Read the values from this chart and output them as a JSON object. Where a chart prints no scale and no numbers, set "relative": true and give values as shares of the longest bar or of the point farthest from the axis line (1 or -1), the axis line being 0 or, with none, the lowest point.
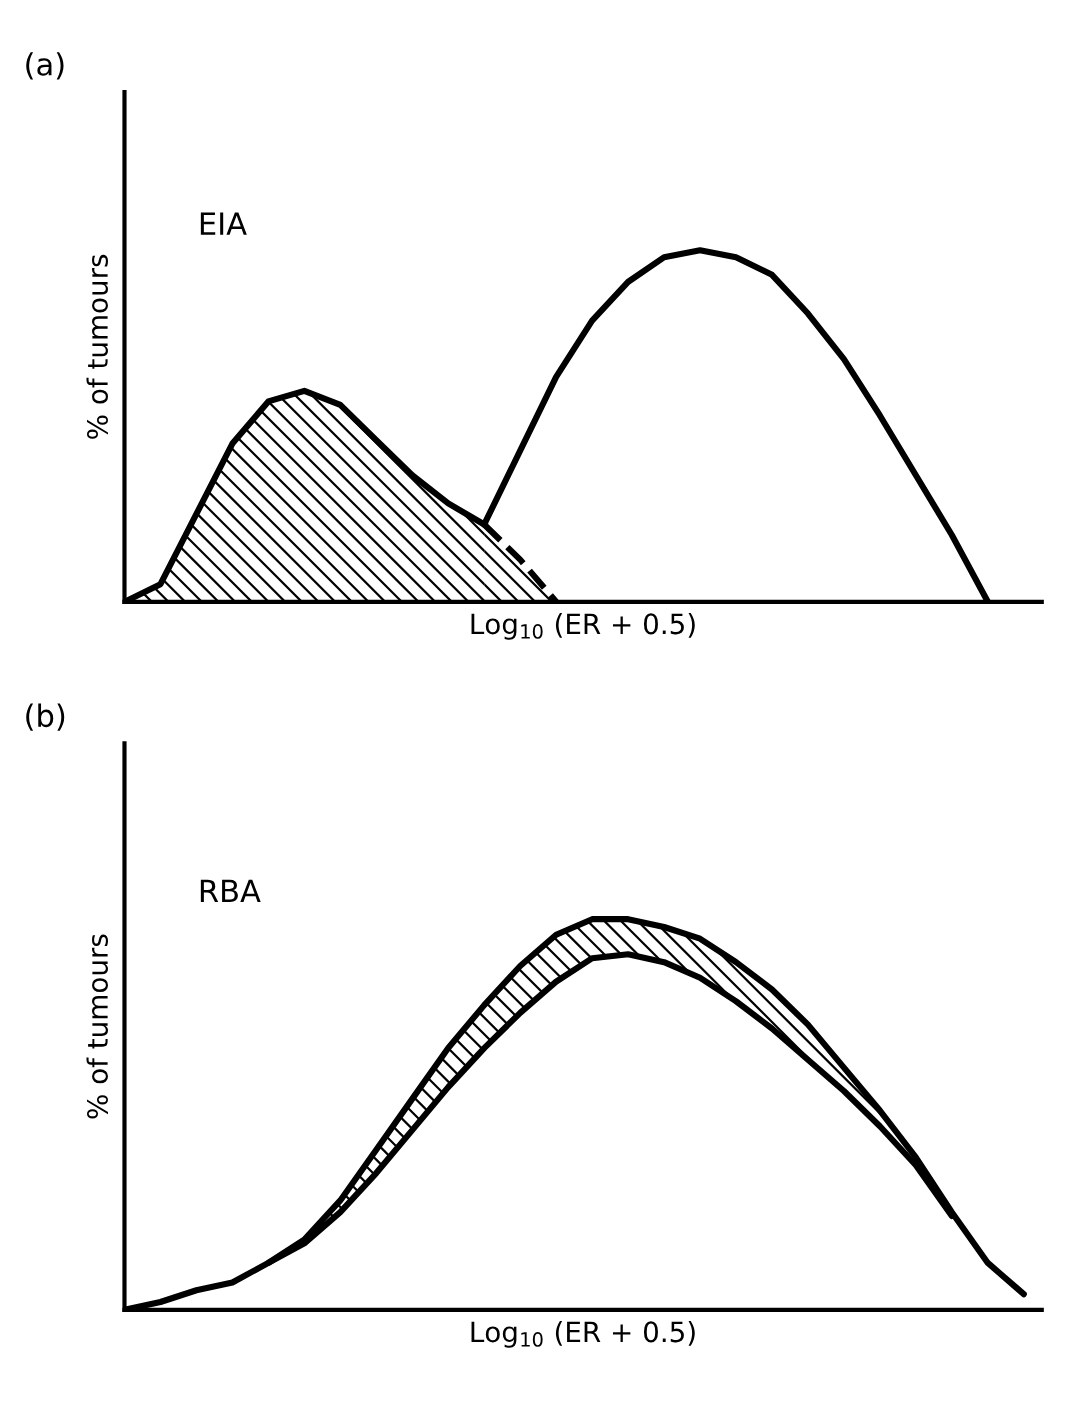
{
  "chart_data": [
    {
      "type": "line",
      "title": "(a)",
      "xlabel": "Log$_{10}$ (ER + 0.5)",
      "ylabel": "% of tumours",
      "annotations": [
        "EIA"
      ],
      "relative": true,
      "tick_labels": false,
      "categories": [
        null,
        null,
        null,
        null,
        null,
        null,
        null,
        null,
        null,
        null,
        null,
        null,
        null,
        null,
        null,
        null,
        null,
        null,
        null,
        null,
        null,
        null,
        null,
        null,
        null,
        null
      ],
      "series": [
        {
          "type": "area",
          "color": "#000000",
          "line_style": "solid",
          "values": [
            0,
            0.05,
            0.25,
            0.45,
            0.57,
            0.6,
            0.56,
            0.46,
            0.36,
            0.28,
            0.22,
            null,
            null,
            null,
            null,
            null,
            null,
            null,
            null,
            null,
            null,
            null,
            null,
            null,
            null,
            null
          ]
        },
        {
          "type": "area",
          "color": "#000000",
          "line_style": "dashed",
          "values": [
            null,
            null,
            null,
            null,
            null,
            null,
            null,
            null,
            null,
            null,
            0.22,
            0.12,
            0,
            null,
            null,
            null,
            null,
            null,
            null,
            null,
            null,
            null,
            null,
            null,
            null,
            null
          ]
        },
        {
          "color": "#000000",
          "line_style": "solid",
          "values": [
            null,
            null,
            null,
            null,
            null,
            null,
            null,
            null,
            null,
            null,
            0.22,
            0.43,
            0.64,
            0.8,
            0.91,
            0.98,
            1,
            0.98,
            0.93,
            0.82,
            0.69,
            0.53,
            0.36,
            0.19,
            0,
            null
          ]
        }
      ]
    },
    {
      "type": "line",
      "title": "(b)",
      "xlabel": "Log$_{10}$ (ER + 0.5)",
      "ylabel": "% of tumours",
      "annotations": [
        "RBA"
      ],
      "relative": true,
      "tick_labels": false,
      "categories": [
        null,
        null,
        null,
        null,
        null,
        null,
        null,
        null,
        null,
        null,
        null,
        null,
        null,
        null,
        null,
        null,
        null,
        null,
        null,
        null,
        null,
        null,
        null,
        null,
        null,
        null
      ],
      "series": [
        {
          "color": "#000000",
          "line_style": "solid",
          "values": [
            0,
            0.02,
            0.05,
            0.07,
            0.12,
            0.18,
            0.28,
            0.41,
            0.54,
            0.67,
            0.78,
            0.88,
            0.96,
            1,
            1,
            0.98,
            0.95,
            0.89,
            0.82,
            0.73,
            0.62,
            0.51,
            0.39,
            0.25,
            0.12,
            0.04
          ],
          "lower": [
            0,
            0.02,
            0.05,
            0.07,
            0.12,
            0.17,
            0.25,
            0.35,
            0.46,
            0.57,
            0.67,
            0.76,
            0.84,
            0.9,
            0.91,
            0.89,
            0.85,
            0.79,
            0.72,
            0.64,
            0.56,
            0.47,
            0.37,
            0.24,
            0.12,
            0.04
          ],
          "upper": [
            0,
            0.02,
            0.05,
            0.07,
            0.12,
            0.18,
            0.28,
            0.41,
            0.54,
            0.67,
            0.78,
            0.88,
            0.96,
            1,
            1,
            0.98,
            0.95,
            0.89,
            0.82,
            0.73,
            0.62,
            0.51,
            0.39,
            0.25,
            0.12,
            0.04
          ]
        },
        {
          "color": "#000000",
          "line_style": "solid",
          "values": [
            null,
            null,
            null,
            null,
            0.12,
            0.17,
            0.25,
            0.35,
            0.46,
            0.57,
            0.67,
            0.76,
            0.84,
            0.9,
            0.91,
            0.89,
            0.85,
            0.79,
            0.72,
            0.64,
            0.56,
            0.47,
            0.37,
            0.24,
            null,
            null
          ]
        }
      ]
    }
  ]
}
